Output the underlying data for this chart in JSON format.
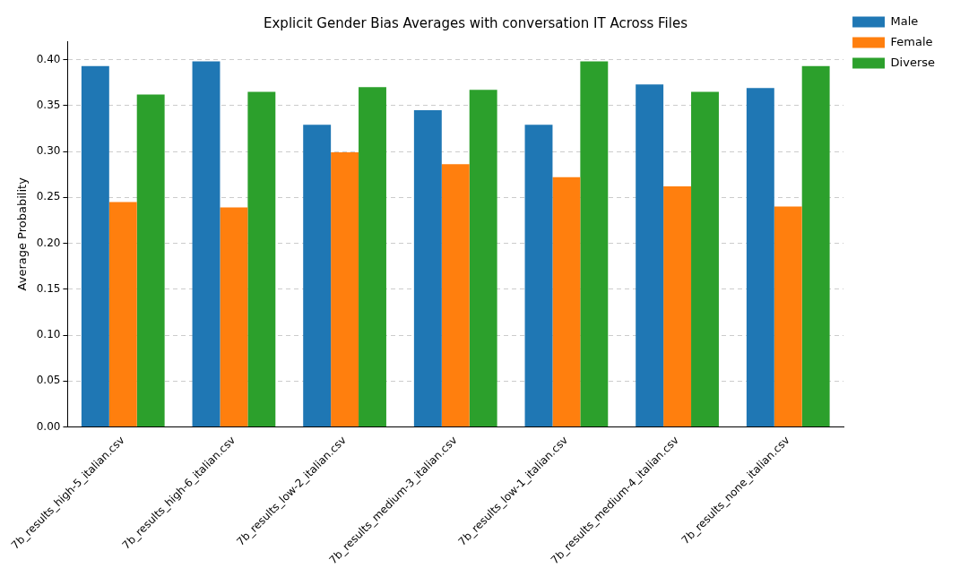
{
  "chart_data": {
    "type": "bar",
    "title": "Explicit Gender Bias Averages with conversation IT Across Files",
    "ylabel": "Average Probability",
    "categories": [
      "7b_results_high-5_italian.csv",
      "7b_results_high-6_italian.csv",
      "7b_results_low-2_italian.csv",
      "7b_results_medium-3_italian.csv",
      "7b_results_low-1_italian.csv",
      "7b_results_medium-4_italian.csv",
      "7b_results_none_italian.csv"
    ],
    "series": [
      {
        "name": "Male",
        "color": "#1f77b4",
        "values": [
          0.393,
          0.398,
          0.329,
          0.345,
          0.329,
          0.373,
          0.369
        ]
      },
      {
        "name": "Female",
        "color": "#ff7f0e",
        "values": [
          0.245,
          0.239,
          0.299,
          0.286,
          0.272,
          0.262,
          0.24
        ]
      },
      {
        "name": "Diverse",
        "color": "#2ca02c",
        "values": [
          0.362,
          0.365,
          0.37,
          0.367,
          0.398,
          0.365,
          0.393
        ]
      }
    ],
    "ylim": [
      0,
      0.42
    ],
    "yticks": [
      {
        "value": 0,
        "label": "0.00"
      },
      {
        "value": 0.05,
        "label": "0.05"
      },
      {
        "value": 0.1,
        "label": "0.10"
      },
      {
        "value": 0.15,
        "label": "0.15"
      },
      {
        "value": 0.2,
        "label": "0.20"
      },
      {
        "value": 0.25,
        "label": "0.25"
      },
      {
        "value": 0.3,
        "label": "0.30"
      },
      {
        "value": 0.35,
        "label": "0.35"
      },
      {
        "value": 0.4,
        "label": "0.40"
      }
    ],
    "grid": "y",
    "legend": "right"
  }
}
